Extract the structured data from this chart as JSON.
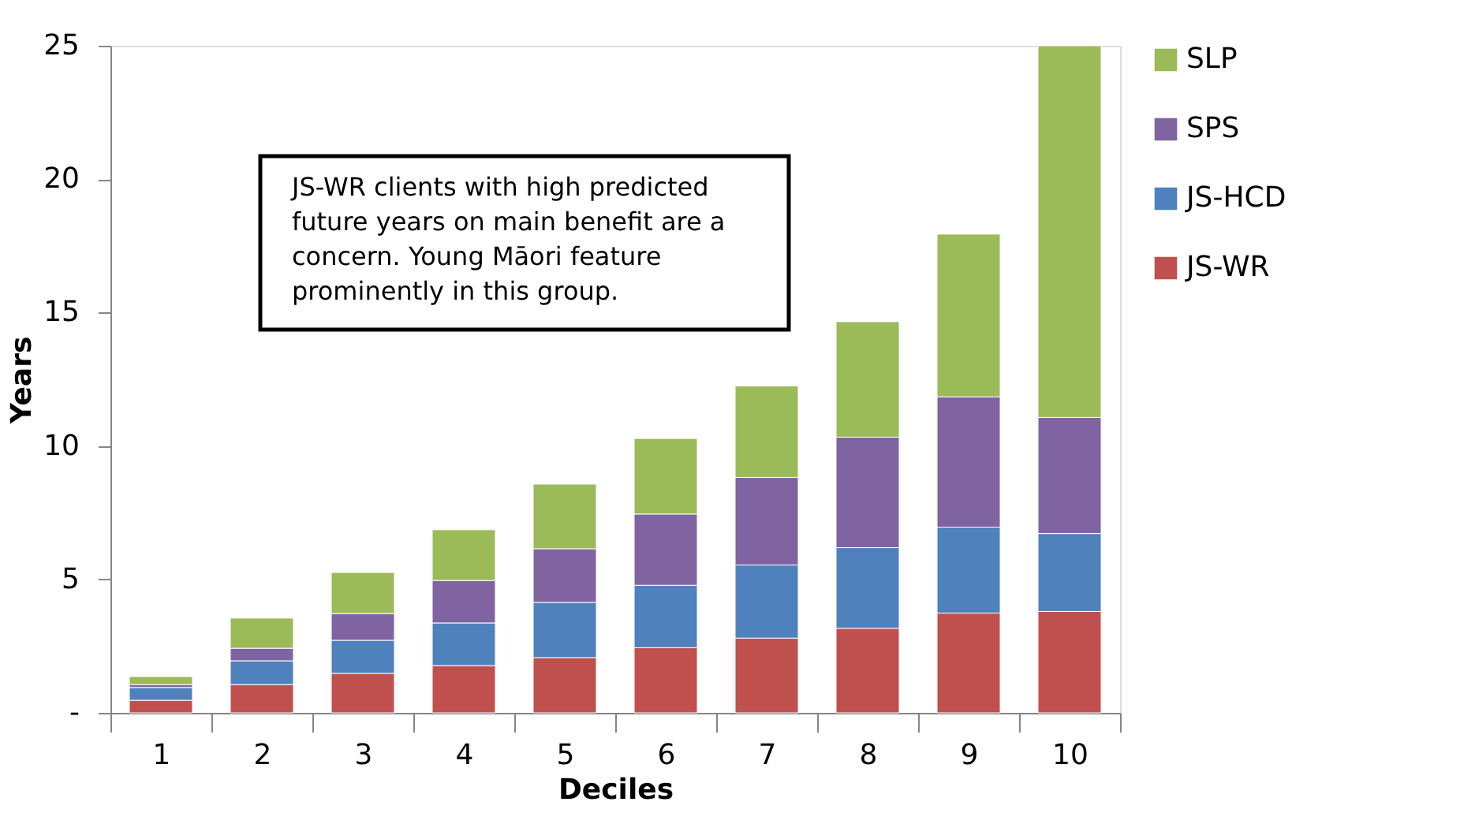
{
  "chart_data": {
    "type": "bar",
    "stacked": true,
    "xlabel": "Deciles",
    "ylabel": "Years",
    "categories": [
      "1",
      "2",
      "3",
      "4",
      "5",
      "6",
      "7",
      "8",
      "9",
      "10"
    ],
    "series": [
      {
        "name": "JS-WR",
        "color": "#c0504d",
        "values": [
          0.47,
          1.06,
          1.48,
          1.77,
          2.07,
          2.44,
          2.8,
          3.17,
          3.74,
          3.8
        ]
      },
      {
        "name": "JS-HCD",
        "color": "#4f81bd",
        "values": [
          0.48,
          0.89,
          1.24,
          1.6,
          2.07,
          2.34,
          2.74,
          3.02,
          3.22,
          2.92
        ]
      },
      {
        "name": "SPS",
        "color": "#8064a2",
        "values": [
          0.11,
          0.47,
          1.0,
          1.59,
          2.01,
          2.67,
          3.28,
          4.14,
          4.88,
          4.35
        ]
      },
      {
        "name": "SLP",
        "color": "#9bbb59",
        "values": [
          0.3,
          1.13,
          1.54,
          1.9,
          2.42,
          2.83,
          3.43,
          4.33,
          6.1,
          13.93
        ]
      }
    ],
    "ylim": [
      0,
      25
    ],
    "yticks": [
      {
        "value": 0,
        "label": "-"
      },
      5,
      10,
      15,
      20,
      25
    ],
    "grid": false,
    "legend": "right",
    "annotations": [
      "JS-WR clients with high predicted future years on main benefit are a concern. Young Māori feature prominently in this group."
    ]
  }
}
